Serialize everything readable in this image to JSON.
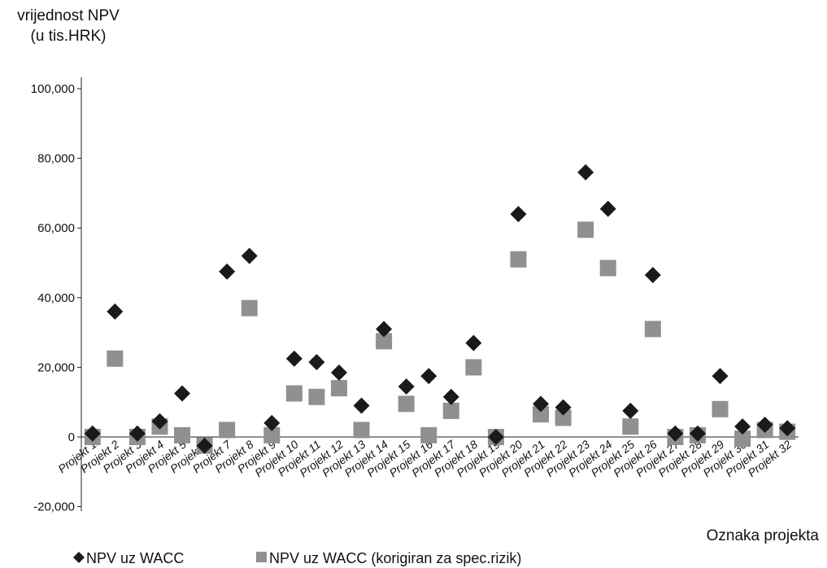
{
  "chart_data": {
    "type": "scatter",
    "title": "",
    "ylabel": "vrijednost NPV",
    "ylabel_unit": "(u tis.HRK)",
    "xlabel": "Oznaka projekta",
    "ylim": [
      -20000,
      100000
    ],
    "yticks": [
      -20000,
      0,
      20000,
      40000,
      60000,
      80000,
      100000
    ],
    "ytick_labels": [
      "-20,000",
      "0",
      "20,000",
      "40,000",
      "60,000",
      "80,000",
      "100,000"
    ],
    "grid": false,
    "legend_position": "bottom-left",
    "categories": [
      "Projekt 1",
      "Projekt 2",
      "Projekt 3",
      "Projekt 4",
      "Projekt 5",
      "Projekt 6",
      "Projekt 7",
      "Projekt 8",
      "Projekt 9",
      "Projekt 10",
      "Projekt 11",
      "Projekt 12",
      "Projekt 13",
      "Projekt 14",
      "Projekt 15",
      "Projekt 16",
      "Projekt 17",
      "Projekt 18",
      "Projekt 19",
      "Projekt 20",
      "Projekt 21",
      "Projekt 22",
      "Projekt 23",
      "Projekt 24",
      "Projekt 25",
      "Projekt 26",
      "Projekt 27",
      "Projekt 28",
      "Projekt 29",
      "Projekt 30",
      "Projekt 31",
      "Projekt 32"
    ],
    "series": [
      {
        "name": "NPV uz WACC",
        "marker": "diamond",
        "color": "#1a1a1a",
        "values": [
          1000,
          36000,
          1000,
          4500,
          12500,
          -2500,
          47500,
          52000,
          4000,
          22500,
          21500,
          18500,
          9000,
          31000,
          14500,
          17500,
          11500,
          27000,
          0,
          64000,
          9500,
          8500,
          76000,
          65500,
          7500,
          46500,
          1000,
          1000,
          17500,
          3000,
          3500,
          2500
        ]
      },
      {
        "name": "NPV uz WACC (korigiran za spec.rizik)",
        "marker": "square",
        "color": "#909090",
        "values": [
          0,
          22500,
          0,
          3000,
          500,
          -2500,
          2000,
          37000,
          500,
          12500,
          11500,
          14000,
          2000,
          27500,
          9500,
          500,
          7500,
          20000,
          0,
          51000,
          6500,
          5500,
          59500,
          48500,
          3000,
          31000,
          0,
          500,
          8000,
          -500,
          2000,
          1500
        ]
      }
    ]
  }
}
